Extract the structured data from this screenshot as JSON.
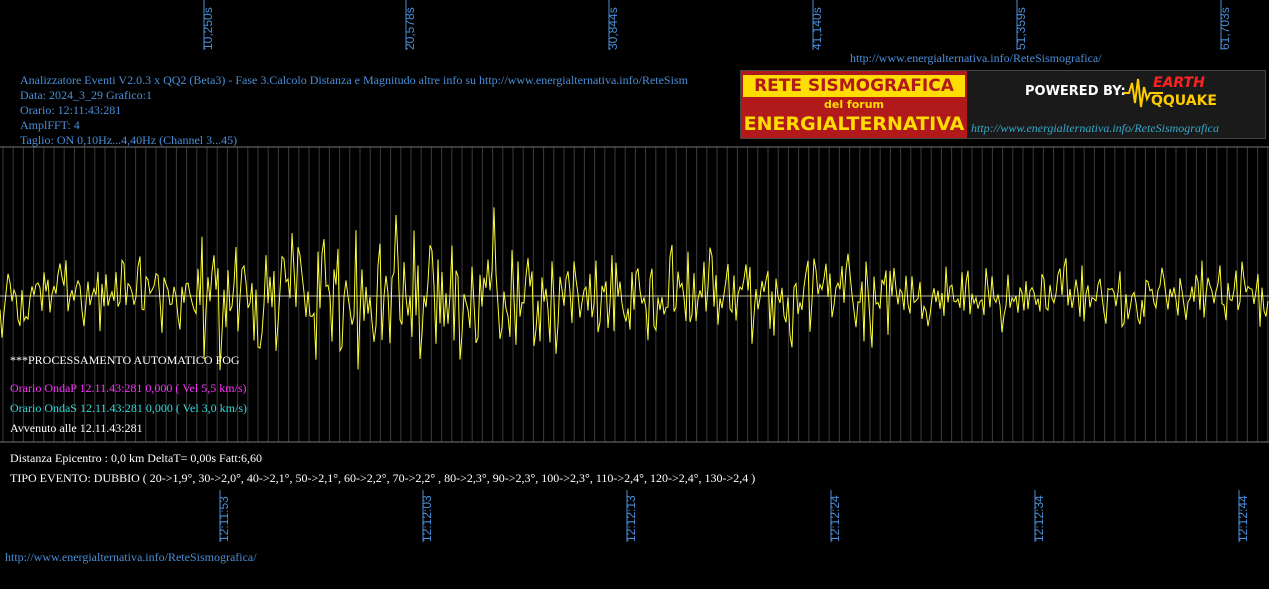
{
  "header": {
    "title_line": "Analizzatore Eventi V2.0.3 x QQ2 (Beta3) - Fase 3.Calcolo Distanza e Magnitudo altre info su http://www.energialternativa.info/ReteSism",
    "data_line": "Data: 2024_3_29 Grafico:1",
    "orario_line": "Orario: 12:11:43:281",
    "ampl_line": "AmplFFT: 4",
    "taglio_line": "Taglio: ON 0,10Hz...4,40Hz       (Channel 3...45)"
  },
  "top_url": "http://www.energialternativa.info/ReteSismografica/",
  "bottom_url": "http://www.energialternativa.info/ReteSismografica/",
  "top_ticks": [
    "10,250s",
    "20,578s",
    "30,844s",
    "41,140s",
    "51,359s",
    "61,703s"
  ],
  "bottom_ticks": [
    "12:11:53",
    "12:12:03",
    "12:12:13",
    "12:12:24",
    "12:12:34",
    "12:12:44"
  ],
  "processing": {
    "auto_label": "***PROCESSAMENTO AUTOMATICO FOG",
    "onda_p": "Orario OndaP 12.11.43:281  0,000 ( Vel 5,5 km/s)",
    "onda_s": "Orario OndaS 12.11.43:281  0,000 ( Vel 3,0 km/s)",
    "avvenuto": "Avvenuto alle 12.11.43:281"
  },
  "distance_line": "Distanza Epicentro : 0,0 km DeltaT= 0,00s  Fatt:6,60",
  "event_type_line": "TIPO EVENTO: DUBBIO ( 20->1,9°, 30->2,0°, 40->2,1°, 50->2,1°, 60->2,2°, 70->2,2° , 80->2,3°, 90->2,3°, 100->2,3°, 110->2,4°, 120->2,4°, 130->2,4 )",
  "banner": {
    "top_text": "RETE SISMOGRAFICA",
    "mid_text": "del forum",
    "bottom_text": "ENERGIALTERNATIVA",
    "powered_text": "POWERED BY:",
    "logo_top": "EARTH",
    "logo_bottom": "QQUAKE",
    "url_text": "http://www.energialternativa.info/ReteSismografica"
  },
  "colors": {
    "background": "#000000",
    "trace": "#ffff33",
    "grid": "#666666",
    "info_text": "#4a8fd8",
    "onda_p": "#ff33ff",
    "onda_s": "#33dddd"
  }
}
